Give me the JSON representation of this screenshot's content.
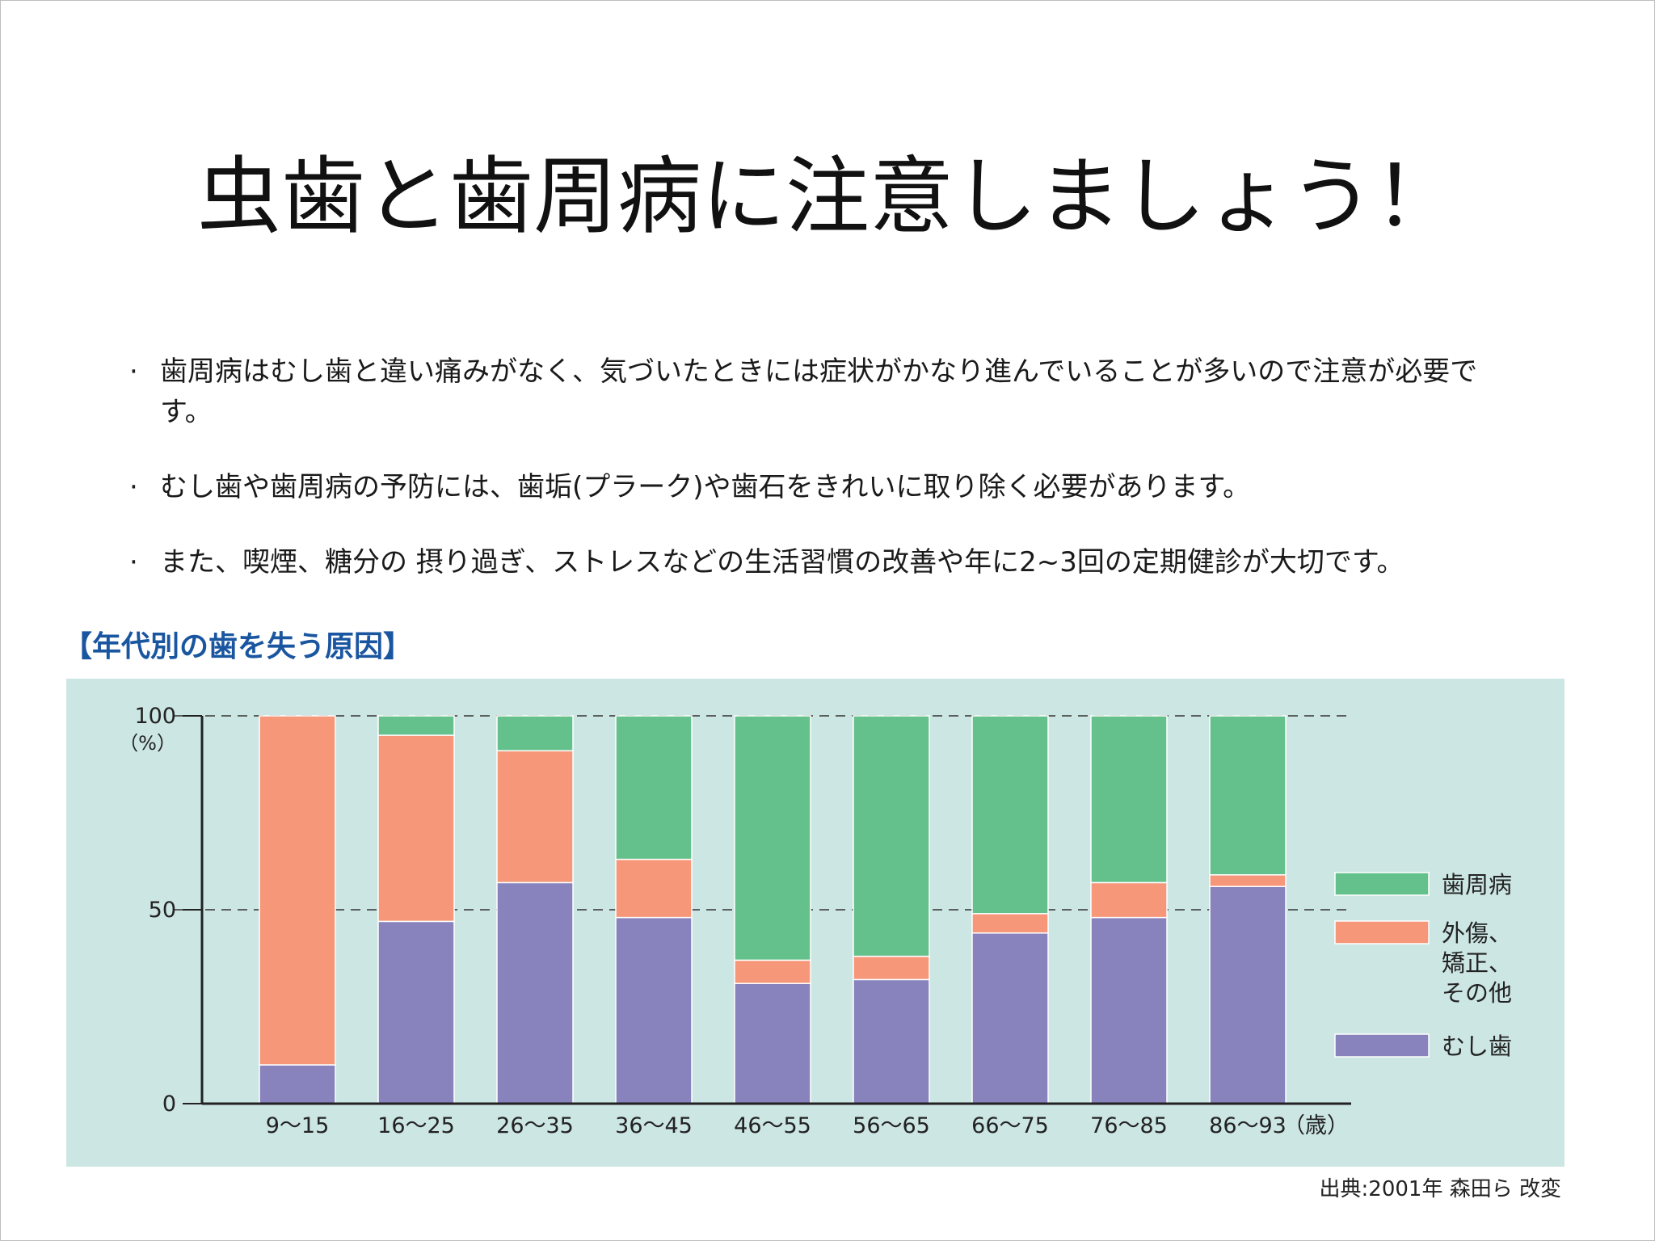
{
  "title": "虫歯と歯周病に注意しましょう！",
  "bullets": [
    "歯周病はむし歯と違い痛みがなく、気づいたときには症状がかなり進んでいることが多いので注意が必要です。",
    "むし歯や歯周病の予防には、歯垢(プラーク)や歯石をきれいに取り除く必要があります。",
    "また、喫煙、糖分の 摂り過ぎ、ストレスなどの生活習慣の改善や年に2~3回の定期健診が大切です。"
  ],
  "chart_heading": "【年代別の歯を失う原因】",
  "source": "出典:2001年 森田ら 改変",
  "chart_data": {
    "type": "bar",
    "stacked": true,
    "categories": [
      "9〜15",
      "16〜25",
      "26〜35",
      "36〜45",
      "46〜55",
      "56〜65",
      "66〜75",
      "76〜85",
      "86〜93"
    ],
    "x_unit": "（歳）",
    "y_unit": "（%）",
    "ylim": [
      0,
      100
    ],
    "yticks": [
      0,
      50,
      100
    ],
    "gridlines": "dashed at 50 and 100",
    "legend_position": "right",
    "series": [
      {
        "name": "むし歯",
        "color": "#8882bd",
        "values": [
          10,
          47,
          57,
          48,
          31,
          32,
          44,
          48,
          56
        ]
      },
      {
        "name": "外傷、矯正、その他",
        "color": "#f6977a",
        "values": [
          90,
          48,
          34,
          15,
          6,
          6,
          5,
          9,
          3
        ]
      },
      {
        "name": "歯周病",
        "color": "#64c18b",
        "values": [
          0,
          5,
          9,
          37,
          63,
          62,
          51,
          43,
          41
        ]
      }
    ],
    "legend": [
      {
        "label": "歯周病",
        "color": "#64c18b"
      },
      {
        "label": "外傷、\n矯正、\nその他",
        "color": "#f6977a"
      },
      {
        "label": "むし歯",
        "color": "#8882bd"
      }
    ]
  }
}
